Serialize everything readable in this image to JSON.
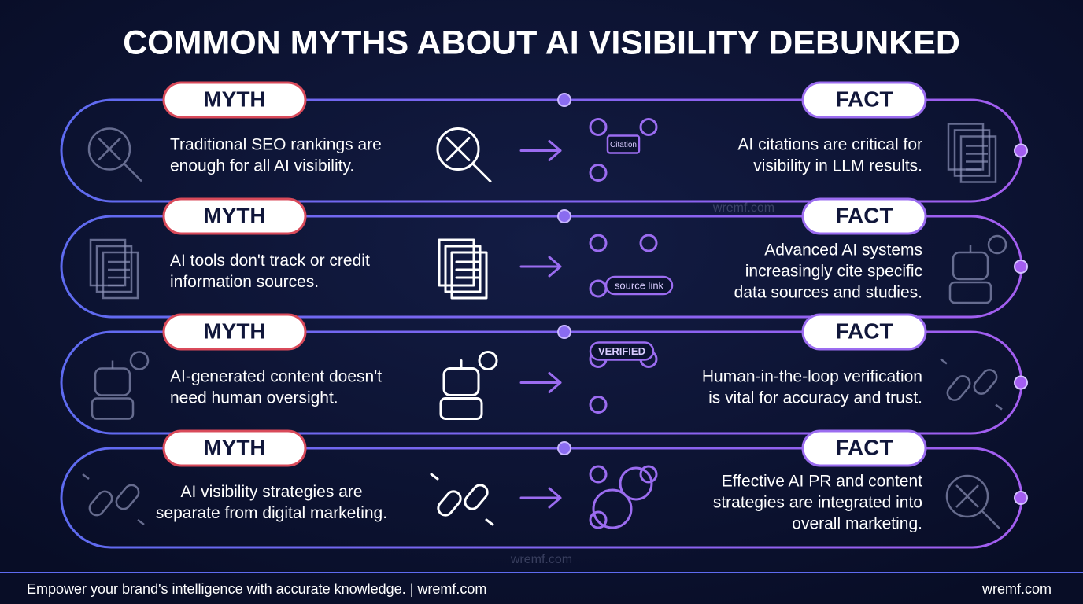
{
  "title": "COMMON MYTHS ABOUT AI VISIBILITY DEBUNKED",
  "rows": [
    {
      "myth_label": "MYTH",
      "myth_lines": [
        "Traditional SEO rankings are",
        "enough for all AI visibility."
      ],
      "fact_label": "FACT",
      "fact_lines": [
        "AI citations are critical for",
        "visibility in LLM results."
      ],
      "icon_label": "Citation"
    },
    {
      "myth_label": "MYTH",
      "myth_lines": [
        "AI tools don't track or credit",
        "information sources."
      ],
      "fact_label": "FACT",
      "fact_lines": [
        "Advanced AI systems",
        "increasingly cite specific",
        "data sources and studies."
      ],
      "icon_label": "source link"
    },
    {
      "myth_label": "MYTH",
      "myth_lines": [
        "AI-generated content doesn't",
        "need human oversight."
      ],
      "fact_label": "FACT",
      "fact_lines": [
        "Human-in-the-loop verification",
        "is vital for accuracy and trust."
      ],
      "icon_label": "VERIFIED"
    },
    {
      "myth_label": "MYTH",
      "myth_lines": [
        "AI visibility strategies are",
        "separate from digital marketing."
      ],
      "fact_label": "FACT",
      "fact_lines": [
        "Effective AI PR and content",
        "strategies are integrated into",
        "overall marketing."
      ]
    }
  ],
  "watermarks": [
    "wremf.com",
    "wremf.com"
  ],
  "footer": {
    "left": "Empower your brand's intelligence with accurate knowledge. | wremf.com",
    "right": "wremf.com"
  }
}
